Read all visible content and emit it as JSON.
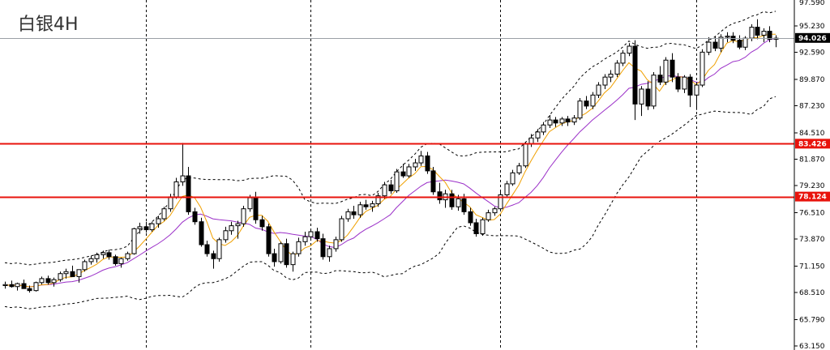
{
  "chart_data": {
    "type": "candlestick",
    "title": "白银4H",
    "y_range": [
      63.15,
      97.59
    ],
    "y_ticks": [
      {
        "value": 95.23,
        "label": "95.230"
      },
      {
        "value": 92.59,
        "label": "92.590"
      },
      {
        "value": 89.87,
        "label": "89.870"
      },
      {
        "value": 87.23,
        "label": "87.230"
      },
      {
        "value": 84.51,
        "label": "84.510"
      },
      {
        "value": 81.87,
        "label": "81.870"
      },
      {
        "value": 79.23,
        "label": "79.230"
      },
      {
        "value": 76.51,
        "label": "76.510"
      },
      {
        "value": 73.87,
        "label": "73.870"
      },
      {
        "value": 71.15,
        "label": "71.150"
      },
      {
        "value": 68.51,
        "label": "68.510"
      },
      {
        "value": 65.79,
        "label": "65.790"
      },
      {
        "value": 63.15,
        "label": "63.150"
      }
    ],
    "top_partial_tick": {
      "value": 97.59,
      "label": "97.590"
    },
    "current_price": {
      "value": 94.026,
      "label": "94.026",
      "color": "#000000"
    },
    "horizontal_levels": [
      {
        "value": 83.426,
        "label": "83.426",
        "color": "#e8130c"
      },
      {
        "value": 78.124,
        "label": "78.124",
        "color": "#e8130c"
      }
    ],
    "grid": "vertical dashed separators only",
    "ma_fast_color": "#f0a000",
    "ma_slow_color": "#9b30c8",
    "bollinger_color": "#000000",
    "bull_color": "#ffffff",
    "bear_color": "#000000",
    "candles": [
      [
        69.2,
        69.6,
        68.9,
        69.3
      ],
      [
        69.3,
        69.7,
        69.0,
        69.1
      ],
      [
        69.1,
        69.5,
        68.7,
        69.4
      ],
      [
        69.4,
        69.8,
        69.1,
        68.9
      ],
      [
        68.9,
        69.2,
        68.5,
        68.7
      ],
      [
        68.7,
        69.6,
        68.6,
        69.5
      ],
      [
        69.5,
        70.1,
        69.3,
        69.9
      ],
      [
        69.9,
        70.2,
        69.3,
        69.5
      ],
      [
        69.5,
        70.0,
        69.1,
        69.8
      ],
      [
        69.8,
        70.6,
        69.6,
        70.4
      ],
      [
        70.4,
        70.9,
        69.9,
        70.6
      ],
      [
        70.6,
        71.2,
        70.3,
        70.1
      ],
      [
        70.1,
        70.6,
        69.5,
        70.8
      ],
      [
        70.8,
        71.8,
        70.6,
        71.6
      ],
      [
        71.6,
        72.2,
        71.3,
        71.9
      ],
      [
        71.9,
        72.5,
        71.5,
        72.3
      ],
      [
        72.3,
        72.7,
        71.9,
        72.5
      ],
      [
        72.5,
        72.8,
        71.8,
        72.1
      ],
      [
        72.1,
        72.3,
        71.2,
        71.4
      ],
      [
        71.4,
        72.0,
        71.0,
        71.9
      ],
      [
        71.9,
        72.6,
        71.7,
        72.4
      ],
      [
        72.4,
        75.0,
        72.3,
        74.9
      ],
      [
        74.9,
        75.5,
        74.4,
        75.1
      ],
      [
        75.1,
        75.6,
        74.5,
        74.8
      ],
      [
        74.8,
        75.6,
        74.6,
        75.4
      ],
      [
        75.4,
        76.2,
        75.0,
        75.9
      ],
      [
        75.9,
        77.1,
        75.7,
        76.9
      ],
      [
        76.9,
        78.4,
        76.6,
        78.1
      ],
      [
        78.1,
        80.0,
        77.9,
        79.6
      ],
      [
        79.6,
        83.5,
        79.2,
        80.2
      ],
      [
        80.2,
        81.1,
        76.3,
        76.6
      ],
      [
        76.6,
        77.0,
        75.3,
        75.6
      ],
      [
        75.6,
        76.0,
        73.1,
        73.3
      ],
      [
        73.3,
        73.7,
        72.1,
        72.4
      ],
      [
        72.4,
        72.7,
        70.9,
        71.9
      ],
      [
        71.9,
        74.0,
        71.6,
        73.8
      ],
      [
        73.8,
        75.1,
        73.5,
        74.7
      ],
      [
        74.7,
        75.6,
        74.3,
        75.2
      ],
      [
        75.2,
        75.7,
        73.9,
        75.4
      ],
      [
        75.4,
        77.2,
        75.1,
        76.9
      ],
      [
        76.9,
        78.3,
        76.6,
        78.0
      ],
      [
        78.0,
        78.6,
        75.4,
        75.8
      ],
      [
        75.8,
        76.2,
        74.7,
        75.1
      ],
      [
        75.1,
        75.4,
        72.1,
        72.4
      ],
      [
        72.4,
        72.9,
        71.1,
        71.6
      ],
      [
        71.6,
        73.6,
        71.4,
        73.4
      ],
      [
        73.4,
        73.9,
        71.0,
        71.3
      ],
      [
        71.3,
        72.6,
        70.6,
        72.4
      ],
      [
        72.4,
        74.0,
        72.1,
        73.6
      ],
      [
        73.6,
        74.6,
        73.2,
        74.1
      ],
      [
        74.1,
        74.9,
        73.7,
        74.6
      ],
      [
        74.6,
        75.0,
        73.6,
        73.9
      ],
      [
        73.9,
        74.4,
        71.8,
        72.1
      ],
      [
        72.1,
        73.2,
        71.6,
        72.9
      ],
      [
        72.9,
        74.1,
        72.6,
        73.8
      ],
      [
        73.8,
        76.2,
        73.6,
        75.9
      ],
      [
        75.9,
        76.9,
        75.6,
        76.6
      ],
      [
        76.6,
        77.2,
        75.9,
        76.3
      ],
      [
        76.3,
        77.6,
        76.0,
        77.3
      ],
      [
        77.3,
        77.8,
        76.8,
        77.1
      ],
      [
        77.1,
        77.7,
        76.6,
        77.4
      ],
      [
        77.4,
        78.5,
        77.1,
        78.2
      ],
      [
        78.2,
        79.6,
        77.9,
        79.3
      ],
      [
        79.3,
        79.8,
        78.4,
        78.7
      ],
      [
        78.7,
        80.9,
        78.5,
        80.6
      ],
      [
        80.6,
        81.4,
        80.0,
        80.2
      ],
      [
        80.2,
        81.4,
        80.0,
        81.1
      ],
      [
        81.1,
        81.9,
        80.7,
        81.5
      ],
      [
        81.5,
        82.7,
        81.2,
        82.2
      ],
      [
        82.2,
        82.6,
        80.4,
        80.7
      ],
      [
        80.7,
        81.1,
        78.3,
        78.6
      ],
      [
        78.6,
        79.5,
        77.4,
        77.8
      ],
      [
        77.8,
        78.8,
        77.0,
        78.4
      ],
      [
        78.4,
        78.8,
        76.8,
        77.1
      ],
      [
        77.1,
        78.3,
        76.7,
        77.9
      ],
      [
        77.9,
        78.4,
        76.3,
        76.6
      ],
      [
        76.6,
        77.0,
        75.2,
        75.5
      ],
      [
        75.5,
        75.9,
        74.1,
        74.4
      ],
      [
        74.4,
        76.0,
        74.2,
        75.8
      ],
      [
        75.8,
        76.8,
        75.6,
        76.5
      ],
      [
        76.5,
        77.1,
        76.2,
        76.9
      ],
      [
        76.9,
        78.6,
        76.7,
        78.3
      ],
      [
        78.3,
        79.7,
        78.1,
        79.4
      ],
      [
        79.4,
        80.8,
        79.2,
        80.5
      ],
      [
        80.5,
        81.5,
        80.3,
        81.2
      ],
      [
        81.2,
        83.6,
        81.0,
        83.4
      ],
      [
        83.4,
        84.4,
        83.1,
        84.0
      ],
      [
        84.0,
        84.9,
        83.6,
        84.6
      ],
      [
        84.6,
        85.6,
        84.3,
        85.3
      ],
      [
        85.3,
        86.3,
        85.0,
        85.8
      ],
      [
        85.8,
        86.1,
        85.1,
        85.5
      ],
      [
        85.5,
        86.1,
        85.2,
        85.9
      ],
      [
        85.9,
        86.2,
        85.2,
        85.6
      ],
      [
        85.6,
        86.3,
        85.3,
        86.0
      ],
      [
        86.0,
        88.0,
        85.8,
        87.7
      ],
      [
        87.7,
        88.2,
        86.9,
        87.2
      ],
      [
        87.2,
        88.6,
        86.9,
        88.3
      ],
      [
        88.3,
        89.6,
        88.0,
        89.3
      ],
      [
        89.3,
        90.4,
        88.9,
        90.1
      ],
      [
        90.1,
        90.8,
        89.6,
        90.4
      ],
      [
        90.4,
        91.8,
        90.1,
        91.5
      ],
      [
        91.5,
        92.8,
        91.2,
        92.5
      ],
      [
        92.5,
        93.5,
        92.2,
        93.2
      ],
      [
        93.2,
        93.8,
        85.8,
        87.4
      ],
      [
        87.4,
        89.2,
        86.2,
        88.9
      ],
      [
        88.9,
        89.7,
        86.8,
        87.2
      ],
      [
        87.2,
        90.6,
        86.9,
        90.3
      ],
      [
        90.3,
        91.2,
        89.3,
        89.6
      ],
      [
        89.6,
        92.1,
        89.3,
        91.8
      ],
      [
        91.8,
        92.5,
        89.6,
        90.1
      ],
      [
        90.1,
        90.5,
        88.6,
        88.9
      ],
      [
        88.9,
        90.3,
        88.5,
        90.1
      ],
      [
        90.1,
        90.4,
        87.1,
        88.3
      ],
      [
        88.3,
        89.6,
        86.8,
        89.3
      ],
      [
        89.3,
        92.9,
        89.1,
        92.6
      ],
      [
        92.6,
        94.1,
        92.3,
        93.6
      ],
      [
        93.6,
        94.2,
        92.7,
        93.0
      ],
      [
        93.0,
        94.4,
        92.6,
        94.1
      ],
      [
        94.1,
        94.6,
        93.6,
        94.2
      ],
      [
        94.2,
        94.6,
        93.5,
        93.8
      ],
      [
        93.8,
        94.3,
        92.9,
        93.1
      ],
      [
        93.1,
        94.2,
        92.8,
        94.0
      ],
      [
        94.0,
        95.4,
        93.7,
        95.1
      ],
      [
        95.1,
        95.9,
        93.9,
        94.3
      ],
      [
        94.3,
        95.0,
        93.6,
        94.7
      ],
      [
        94.7,
        95.2,
        93.6,
        93.9
      ],
      [
        93.9,
        94.3,
        93.1,
        94.0
      ]
    ]
  }
}
